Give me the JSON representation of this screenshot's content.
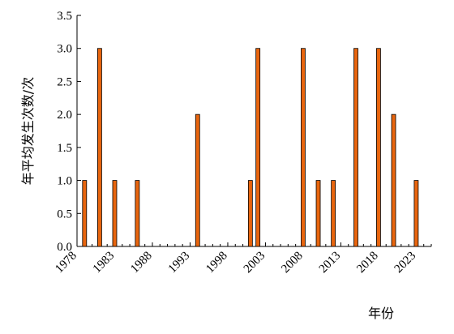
{
  "chart_data": {
    "type": "bar",
    "title": "",
    "xlabel": "年份",
    "ylabel": "年平均发生次数/次",
    "ylim": [
      0,
      3.5
    ],
    "yticks": [
      "0.0",
      "0.5",
      "1.0",
      "1.5",
      "2.0",
      "2.5",
      "3.0",
      "3.5"
    ],
    "xlim": [
      1978,
      2025
    ],
    "xticks": [
      "1978",
      "1983",
      "1988",
      "1993",
      "1998",
      "2003",
      "2008",
      "2013",
      "2018",
      "2023"
    ],
    "grid": false,
    "bar_color": "#e8650e",
    "series": [
      {
        "x": [
          1979,
          1981,
          1983,
          1986,
          1994,
          2001,
          2002,
          2008,
          2010,
          2012,
          2015,
          2018,
          2020,
          2023
        ],
        "values": [
          1,
          3,
          1,
          1,
          2,
          1,
          3,
          3,
          1,
          1,
          3,
          3,
          2,
          1
        ]
      }
    ]
  }
}
